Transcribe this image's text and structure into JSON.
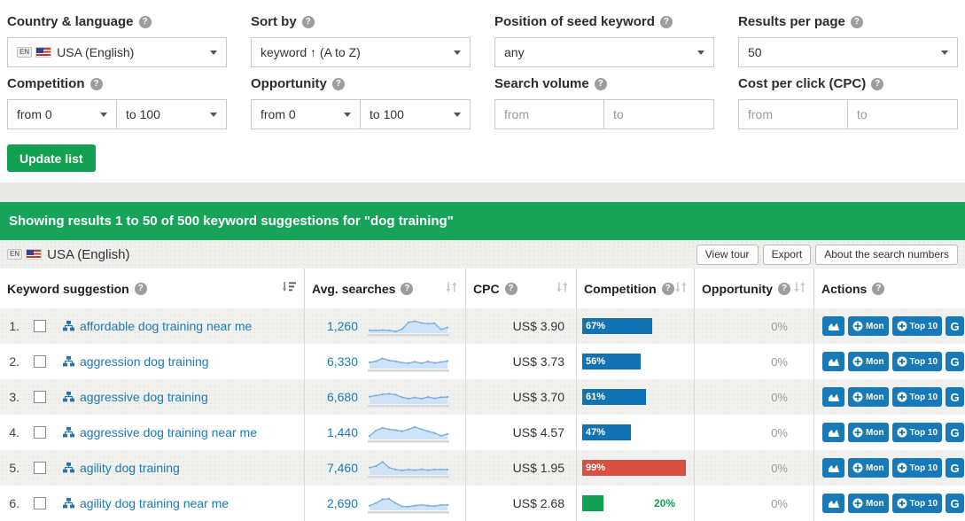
{
  "colors": {
    "accent_green": "#17a45a",
    "button_green": "#12a150",
    "link_blue": "#1a7ab5",
    "action_blue": "#1779b8",
    "bar_blue": "#1173b2",
    "bar_red": "#d94f42",
    "bar_green": "#13a053",
    "muted_gray": "#999999"
  },
  "filters": {
    "items": [
      {
        "label": "Country & language",
        "badge": "EN",
        "value": "USA (English)"
      },
      {
        "label": "Sort by",
        "value": "keyword ↑ (A to Z)"
      },
      {
        "label": "Position of seed keyword",
        "value": "any"
      },
      {
        "label": "Results per page",
        "value": "50"
      },
      {
        "label": "Competition",
        "from": "from 0",
        "to": "to 100"
      },
      {
        "label": "Opportunity",
        "from": "from 0",
        "to": "to 100"
      },
      {
        "label": "Search volume",
        "from_placeholder": "from",
        "to_placeholder": "to"
      },
      {
        "label": "Cost per click (CPC)",
        "from_placeholder": "from",
        "to_placeholder": "to"
      }
    ],
    "update_button": "Update list"
  },
  "results_bar": {
    "text": "Showing results 1 to 50 of 500 keyword suggestions for \"dog training\""
  },
  "toolbar": {
    "locale_badge": "EN",
    "locale_label": "USA (English)",
    "buttons": [
      {
        "label": "View tour"
      },
      {
        "label": "Export"
      },
      {
        "label": "About the search numbers"
      }
    ]
  },
  "table": {
    "headers": {
      "keyword": "Keyword suggestion",
      "avg": "Avg. searches",
      "cpc": "CPC",
      "competition": "Competition",
      "opportunity": "Opportunity",
      "actions": "Actions"
    },
    "action_labels": {
      "mon": "Mon",
      "top10": "Top 10",
      "google": "G"
    },
    "rows": [
      {
        "num": "1.",
        "keyword": "affordable dog training near me",
        "avg": "1,260",
        "cpc": "US$ 3.90",
        "competition_pct": 67,
        "competition_label": "67%",
        "competition_level": "blue",
        "opportunity": "0%",
        "spark": [
          3.0,
          3.0,
          3.1,
          3.0,
          2.6,
          3.4,
          5.8,
          6.2,
          5.6,
          5.3,
          5.5,
          3.3,
          4.0
        ]
      },
      {
        "num": "2.",
        "keyword": "aggression dog training",
        "avg": "6,330",
        "cpc": "US$ 3.73",
        "competition_pct": 56,
        "competition_label": "56%",
        "competition_level": "blue",
        "opportunity": "0%",
        "spark": [
          4.2,
          4.6,
          5.6,
          4.9,
          4.6,
          4.1,
          3.9,
          4.4,
          3.9,
          4.5,
          4.0,
          4.3,
          4.7
        ]
      },
      {
        "num": "3.",
        "keyword": "aggressive dog training",
        "avg": "6,680",
        "cpc": "US$ 3.70",
        "competition_pct": 61,
        "competition_label": "61%",
        "competition_level": "blue",
        "opportunity": "0%",
        "spark": [
          4.6,
          5.0,
          5.4,
          5.6,
          5.3,
          4.4,
          3.9,
          4.3,
          3.9,
          4.5,
          4.0,
          4.4,
          4.5
        ]
      },
      {
        "num": "4.",
        "keyword": "aggressive dog training near me",
        "avg": "1,440",
        "cpc": "US$ 4.57",
        "competition_pct": 47,
        "competition_label": "47%",
        "competition_level": "blue",
        "opportunity": "0%",
        "spark": [
          3.2,
          5.2,
          6.1,
          5.6,
          5.3,
          4.9,
          5.6,
          6.4,
          5.6,
          4.9,
          4.3,
          3.3,
          3.9
        ]
      },
      {
        "num": "5.",
        "keyword": "agility dog training",
        "avg": "7,460",
        "cpc": "US$ 1.95",
        "competition_pct": 99,
        "competition_label": "99%",
        "competition_level": "red",
        "opportunity": "0%",
        "spark": [
          4.6,
          5.1,
          6.6,
          4.6,
          3.9,
          3.6,
          3.9,
          3.7,
          4.0,
          3.7,
          3.9,
          3.9,
          3.9
        ]
      },
      {
        "num": "6.",
        "keyword": "agility dog training near me",
        "avg": "2,690",
        "cpc": "US$ 2.68",
        "competition_pct": 20,
        "competition_label": "20%",
        "competition_level": "green",
        "opportunity": "0%",
        "spark": [
          3.6,
          4.6,
          5.9,
          6.1,
          4.6,
          3.4,
          3.3,
          3.7,
          3.9,
          3.7,
          3.5,
          3.9,
          3.9
        ]
      }
    ]
  }
}
